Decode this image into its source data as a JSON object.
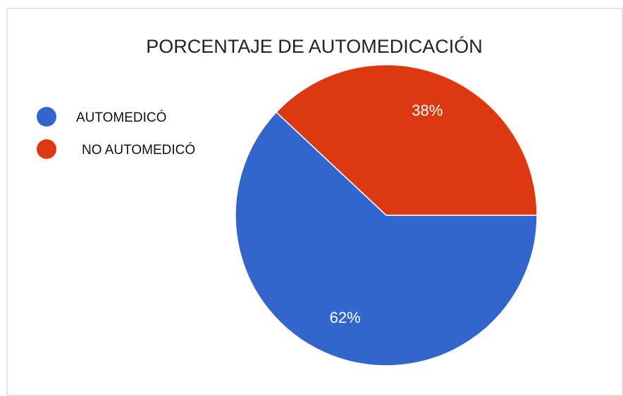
{
  "chart_data": {
    "type": "pie",
    "title": "PORCENTAJE DE AUTOMEDICACIÓN",
    "categories": [
      "AUTOMEDICÓ",
      "NO AUTOMEDICÓ"
    ],
    "values": [
      62,
      38
    ],
    "value_labels": [
      "62%",
      "38%"
    ],
    "colors": [
      "#3366cc",
      "#dc3912"
    ],
    "legend": "left"
  }
}
